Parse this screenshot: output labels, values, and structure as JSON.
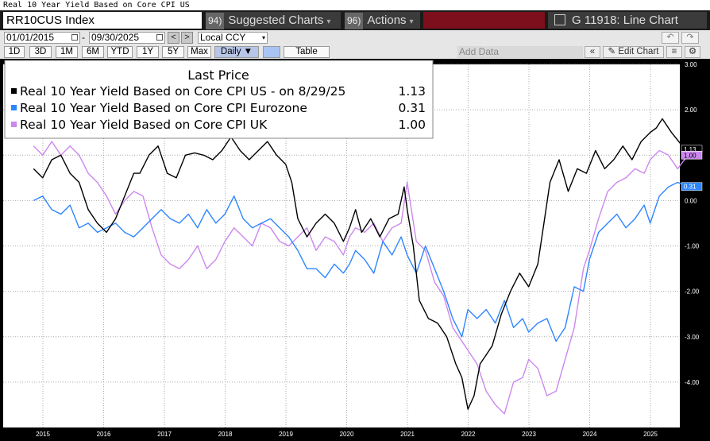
{
  "window": {
    "top_title": "Real 10 Year Yield Based on Core CPI US"
  },
  "header": {
    "ticker": "RR10CUS Index",
    "suggested": {
      "num": "94)",
      "label": "Suggested Charts",
      "caret": "▾"
    },
    "actions": {
      "num": "96)",
      "label": "Actions",
      "caret": "▾"
    },
    "chart_title": "G 11918: Line Chart"
  },
  "controls": {
    "start_date": "01/01/2015",
    "end_date": "09/30/2025",
    "dash": "-",
    "prev": "<",
    "next": ">",
    "currency": "Local CCY",
    "currency_caret": "▾",
    "undo": "↶",
    "redo": "↷"
  },
  "periods": [
    "1D",
    "3D",
    "1M",
    "6M",
    "YTD",
    "1Y",
    "5Y",
    "Max"
  ],
  "frequency": "Daily ▼",
  "table_label": "Table",
  "add_data_placeholder": "Add Data",
  "edit_chart": "✎ Edit Chart",
  "back_icon": "«",
  "colors": {
    "us": "#000000",
    "eurozone": "#2e86ff",
    "uk": "#cc88ee",
    "background": "#ffffff"
  },
  "chart_data": {
    "type": "line",
    "legend_title": "Last Price",
    "legend_position": "top-left",
    "grid": true,
    "x_ticks": [
      "2015",
      "2016",
      "2017",
      "2018",
      "2019",
      "2020",
      "2021",
      "2022",
      "2023",
      "2024",
      "2025"
    ],
    "xlim": [
      2015.0,
      2025.75
    ],
    "ylim": [
      -5.0,
      3.0
    ],
    "y_ticks": [
      {
        "value": 3,
        "label": "3.00"
      },
      {
        "value": 2,
        "label": "2.00"
      },
      {
        "value": 1,
        "label": "1.00"
      },
      {
        "value": 0,
        "label": "0.00"
      },
      {
        "value": -1,
        "label": "-1.00"
      },
      {
        "value": -2,
        "label": "-2.00"
      },
      {
        "value": -3,
        "label": "-3.00"
      },
      {
        "value": -4,
        "label": "-4.00"
      }
    ],
    "series": [
      {
        "name": "Real 10 Year Yield Based on Core CPI US -  on 8/29/25",
        "color": "#000000",
        "last_value": 1.13,
        "last_label": "1.13",
        "x": [
          2014.85,
          2015.0,
          2015.15,
          2015.3,
          2015.45,
          2015.6,
          2015.75,
          2015.9,
          2016.05,
          2016.2,
          2016.35,
          2016.5,
          2016.6,
          2016.75,
          2016.9,
          2017.05,
          2017.2,
          2017.35,
          2017.5,
          2017.65,
          2017.8,
          2017.95,
          2018.1,
          2018.25,
          2018.4,
          2018.55,
          2018.7,
          2018.85,
          2019.0,
          2019.1,
          2019.2,
          2019.35,
          2019.5,
          2019.65,
          2019.8,
          2019.95,
          2020.05,
          2020.15,
          2020.25,
          2020.4,
          2020.55,
          2020.7,
          2020.85,
          2020.95,
          2021.0,
          2021.1,
          2021.2,
          2021.35,
          2021.5,
          2021.65,
          2021.8,
          2021.9,
          2022.0,
          2022.1,
          2022.2,
          2022.3,
          2022.4,
          2022.55,
          2022.7,
          2022.85,
          2023.0,
          2023.15,
          2023.25,
          2023.35,
          2023.5,
          2023.65,
          2023.8,
          2023.95,
          2024.1,
          2024.25,
          2024.4,
          2024.55,
          2024.7,
          2024.85,
          2025.0,
          2025.1,
          2025.2,
          2025.35,
          2025.5,
          2025.62
        ],
        "y": [
          0.7,
          0.5,
          0.9,
          1.0,
          0.6,
          0.4,
          -0.2,
          -0.5,
          -0.7,
          -0.4,
          0.1,
          0.6,
          0.6,
          1.0,
          1.2,
          0.6,
          0.5,
          1.0,
          1.05,
          1.0,
          0.9,
          1.1,
          1.4,
          1.1,
          0.9,
          1.1,
          1.3,
          1.0,
          0.8,
          0.4,
          -0.4,
          -0.8,
          -0.5,
          -0.3,
          -0.5,
          -0.9,
          -0.6,
          -0.2,
          -0.7,
          -0.4,
          -0.8,
          -0.4,
          -0.3,
          0.3,
          -0.2,
          -1.0,
          -2.2,
          -2.6,
          -2.7,
          -3.0,
          -3.6,
          -3.9,
          -4.6,
          -4.3,
          -3.6,
          -3.4,
          -3.2,
          -2.5,
          -2.0,
          -1.6,
          -1.9,
          -1.4,
          -0.5,
          0.4,
          0.9,
          0.2,
          0.7,
          0.6,
          1.1,
          0.7,
          0.9,
          1.2,
          0.9,
          1.3,
          1.5,
          1.6,
          1.8,
          1.5,
          1.25,
          1.13
        ]
      },
      {
        "name": "Real 10 Year Yield Based on Core CPI Eurozone",
        "color": "#2e86ff",
        "last_value": 0.31,
        "last_label": "0.31",
        "x": [
          2014.85,
          2015.0,
          2015.15,
          2015.3,
          2015.45,
          2015.6,
          2015.75,
          2015.9,
          2016.05,
          2016.2,
          2016.35,
          2016.5,
          2016.65,
          2016.8,
          2016.95,
          2017.1,
          2017.25,
          2017.4,
          2017.55,
          2017.7,
          2017.85,
          2018.0,
          2018.15,
          2018.3,
          2018.45,
          2018.6,
          2018.75,
          2018.9,
          2019.05,
          2019.2,
          2019.35,
          2019.5,
          2019.65,
          2019.8,
          2019.95,
          2020.05,
          2020.15,
          2020.3,
          2020.45,
          2020.6,
          2020.75,
          2020.9,
          2021.0,
          2021.15,
          2021.3,
          2021.45,
          2021.6,
          2021.75,
          2021.9,
          2022.0,
          2022.15,
          2022.3,
          2022.45,
          2022.6,
          2022.75,
          2022.9,
          2023.0,
          2023.15,
          2023.3,
          2023.45,
          2023.6,
          2023.75,
          2023.9,
          2024.0,
          2024.15,
          2024.3,
          2024.45,
          2024.6,
          2024.75,
          2024.9,
          2025.0,
          2025.15,
          2025.3,
          2025.45,
          2025.62
        ],
        "y": [
          0.0,
          0.1,
          -0.2,
          -0.3,
          -0.1,
          -0.6,
          -0.5,
          -0.7,
          -0.6,
          -0.5,
          -0.7,
          -0.8,
          -0.6,
          -0.4,
          -0.2,
          -0.4,
          -0.5,
          -0.3,
          -0.6,
          -0.2,
          -0.5,
          -0.3,
          0.1,
          -0.4,
          -0.6,
          -0.5,
          -0.4,
          -0.6,
          -0.8,
          -1.1,
          -1.5,
          -1.5,
          -1.7,
          -1.4,
          -1.6,
          -1.4,
          -1.1,
          -1.3,
          -1.6,
          -0.9,
          -1.2,
          -0.8,
          -1.2,
          -1.6,
          -1.0,
          -1.5,
          -2.0,
          -2.6,
          -3.0,
          -2.4,
          -2.6,
          -2.4,
          -2.7,
          -2.2,
          -2.8,
          -2.6,
          -2.9,
          -2.7,
          -2.6,
          -3.1,
          -2.8,
          -1.9,
          -2.0,
          -1.3,
          -0.7,
          -0.5,
          -0.3,
          -0.6,
          -0.4,
          -0.1,
          -0.5,
          0.1,
          0.3,
          0.4,
          0.31
        ]
      },
      {
        "name": "Real 10 Year Yield Based on Core CPI UK",
        "color": "#cc88ee",
        "last_value": 1.0,
        "last_label": "1.00",
        "x": [
          2014.85,
          2015.0,
          2015.15,
          2015.3,
          2015.45,
          2015.6,
          2015.75,
          2015.9,
          2016.05,
          2016.2,
          2016.35,
          2016.5,
          2016.65,
          2016.8,
          2016.95,
          2017.1,
          2017.25,
          2017.4,
          2017.55,
          2017.7,
          2017.85,
          2018.0,
          2018.15,
          2018.3,
          2018.45,
          2018.6,
          2018.75,
          2018.9,
          2019.05,
          2019.2,
          2019.35,
          2019.5,
          2019.65,
          2019.8,
          2019.95,
          2020.05,
          2020.15,
          2020.3,
          2020.45,
          2020.6,
          2020.75,
          2020.9,
          2021.0,
          2021.15,
          2021.3,
          2021.45,
          2021.6,
          2021.75,
          2021.9,
          2022.0,
          2022.15,
          2022.3,
          2022.45,
          2022.6,
          2022.75,
          2022.9,
          2023.0,
          2023.15,
          2023.3,
          2023.45,
          2023.6,
          2023.75,
          2023.9,
          2024.0,
          2024.15,
          2024.3,
          2024.45,
          2024.6,
          2024.75,
          2024.9,
          2025.0,
          2025.15,
          2025.3,
          2025.45,
          2025.62
        ],
        "y": [
          1.2,
          1.0,
          1.3,
          1.0,
          1.2,
          1.0,
          0.6,
          0.4,
          0.1,
          -0.3,
          0.0,
          0.2,
          0.1,
          -0.6,
          -1.2,
          -1.4,
          -1.5,
          -1.3,
          -1.0,
          -1.5,
          -1.3,
          -0.9,
          -0.6,
          -0.8,
          -1.0,
          -0.5,
          -0.6,
          -0.9,
          -1.0,
          -0.8,
          -0.6,
          -1.1,
          -0.8,
          -0.9,
          -1.2,
          -0.8,
          -0.6,
          -0.7,
          -0.5,
          -0.9,
          -0.6,
          -0.5,
          0.4,
          -0.9,
          -1.1,
          -1.8,
          -2.1,
          -2.8,
          -3.1,
          -3.3,
          -3.6,
          -4.2,
          -4.5,
          -4.7,
          -4.0,
          -3.9,
          -3.5,
          -3.7,
          -4.3,
          -4.2,
          -3.5,
          -2.8,
          -1.5,
          -1.1,
          -0.4,
          0.2,
          0.4,
          0.5,
          0.7,
          0.6,
          0.9,
          1.1,
          1.0,
          0.7,
          1.0
        ]
      }
    ]
  }
}
